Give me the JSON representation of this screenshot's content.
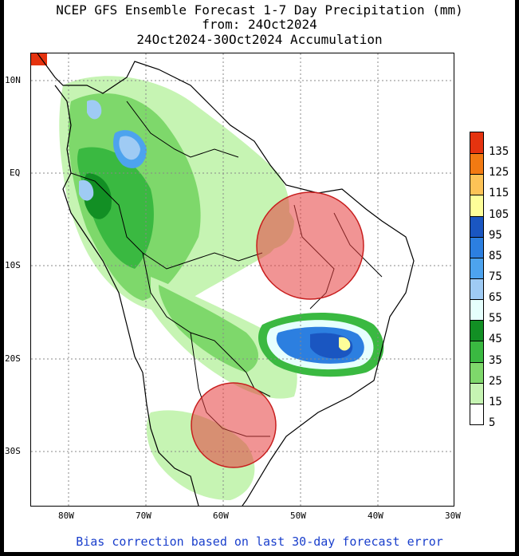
{
  "title": {
    "line1": "NCEP GFS Ensemble Forecast 1-7 Day Precipitation (mm)",
    "line2": "from: 24Oct2024",
    "line3": "24Oct2024-30Oct2024 Accumulation"
  },
  "axes": {
    "lat_labels": [
      "10N",
      "EQ",
      "10S",
      "20S",
      "30S"
    ],
    "lon_labels": [
      "80W",
      "70W",
      "60W",
      "50W",
      "40W",
      "30W"
    ]
  },
  "legend": {
    "labels": [
      "135",
      "125",
      "115",
      "105",
      "95",
      "85",
      "75",
      "65",
      "55",
      "45",
      "35",
      "25",
      "15",
      "5"
    ],
    "colors": [
      "#e5330f",
      "#f27a12",
      "#fdc356",
      "#fefe99",
      "#1a56c1",
      "#2c7fe0",
      "#4da3ee",
      "#9fcbf4",
      "#e6fffd",
      "#128f24",
      "#3ab941",
      "#7ed86b",
      "#c6f4b3",
      "#ffffff"
    ]
  },
  "footer": "Bias correction based on last 30-day forecast error"
}
